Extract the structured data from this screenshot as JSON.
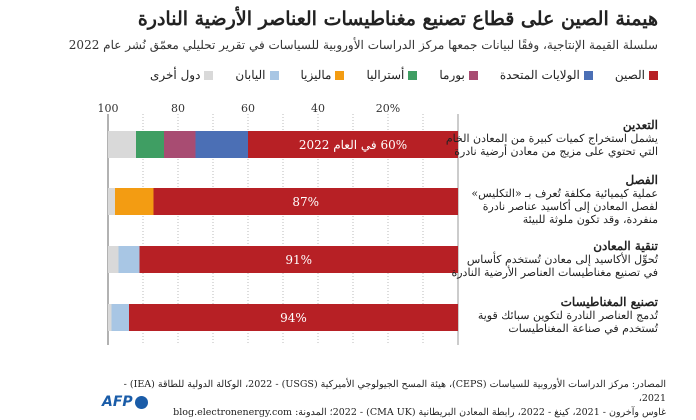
{
  "header": {
    "title": "هيمنة الصين على قطاع تصنيع مغناطيسات العناصر الأرضية النادرة",
    "subtitle": "سلسلة القيمة الإنتاجية، وفقًا لبيانات جمعها مركز الدراسات الأوروبية للسياسات في تقرير تحليلي معمّق نُشر عام 2022"
  },
  "chart_data": {
    "type": "bar",
    "orientation": "horizontal",
    "stacked": true,
    "xlim": [
      0,
      100
    ],
    "x_direction": "right-to-left",
    "grid": true,
    "ticks": [
      "20%",
      "40",
      "60",
      "80",
      "100"
    ],
    "tick_values": [
      20,
      40,
      60,
      80,
      100
    ],
    "legend": [
      {
        "name": "الصين",
        "color": "#b72025"
      },
      {
        "name": "الولايات المتحدة",
        "color": "#4b6fb5"
      },
      {
        "name": "بورما",
        "color": "#a84c72"
      },
      {
        "name": "أستراليا",
        "color": "#3f9e63"
      },
      {
        "name": "ماليزيا",
        "color": "#f39c12"
      },
      {
        "name": "اليابان",
        "color": "#a8c6e4"
      },
      {
        "name": "دول أخرى",
        "color": "#d9d9d9"
      }
    ],
    "categories": [
      {
        "name": "التعدين",
        "desc": [
          "يشمل استخراج كميات كبيرة من المعادن الخام",
          "التي تحتوي على مزيج من معادن أرضية نادرة"
        ],
        "label": "60% في العام 2022",
        "values": {
          "الصين": 60,
          "الولايات المتحدة": 15,
          "بورما": 9,
          "أستراليا": 8,
          "دول أخرى": 8
        }
      },
      {
        "name": "الفصل",
        "desc": [
          "عملية كيميائية مكلفة تُعرف بـ «التكليس»",
          "لفصل المعادن إلى أكاسيد عناصر نادرة",
          "منفردة، وقد تكون ملوثة للبيئة"
        ],
        "label": "87%",
        "values": {
          "الصين": 87,
          "ماليزيا": 11,
          "دول أخرى": 2
        }
      },
      {
        "name": "تنقية المعادن",
        "desc": [
          "تُحوِّل الأكاسيد إلى معادن تُستخدم كأساس",
          "في تصنيع مغناطيسات العناصر الأرضية النادرة"
        ],
        "label": "91%",
        "values": {
          "الصين": 91,
          "اليابان": 6,
          "دول أخرى": 3
        }
      },
      {
        "name": "تصنيع المغناطيسات",
        "desc": [
          "تُدمج العناصر النادرة لتكوين سبائك قوية",
          "تُستخدم في صناعة المغناطيسات"
        ],
        "label": "94%",
        "values": {
          "الصين": 94,
          "اليابان": 5,
          "دول أخرى": 1
        }
      }
    ]
  },
  "footer": {
    "line1": "المصادر: مركز الدراسات الأوروبية للسياسات (CEPS)، هيئة المسح الجيولوجي الأميركية (USGS) - 2022، الوكالة الدولية للطاقة (IEA) - 2021،",
    "line2": "غاوس وآخرون - 2021، كينغ - 2022، رابطة المعادن البريطانية (CMA UK) - 2022؛ المدونة: blog.electronenergy.com",
    "logo": "AFP"
  }
}
